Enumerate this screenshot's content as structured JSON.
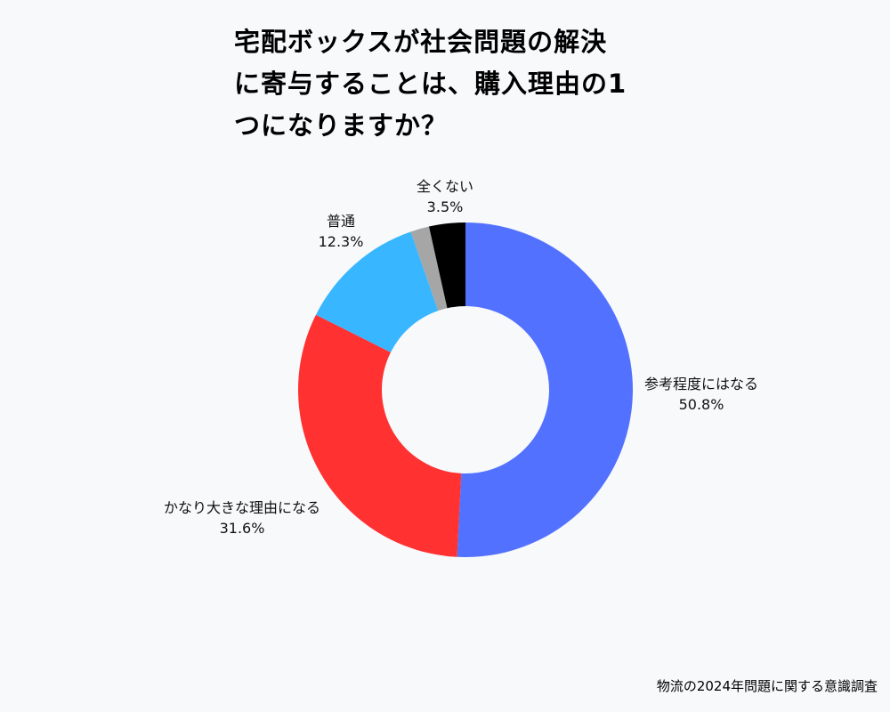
{
  "chart_data": {
    "type": "pie",
    "title_lines": [
      "宅配ボックスが社会問題の解決",
      "に寄与することは、購入理由の1",
      "つになりますか？"
    ],
    "slices": [
      {
        "label": "参考程度にはなる",
        "value": 50.8,
        "value_label": "50.8%",
        "color": "#5271ff"
      },
      {
        "label": "かなり大きな理由になる",
        "value": 31.6,
        "value_label": "31.6%",
        "color": "#ff3131"
      },
      {
        "label": "普通",
        "value": 12.3,
        "value_label": "12.3%",
        "color": "#38b6ff"
      },
      {
        "label": "",
        "value": 1.8,
        "value_label": "",
        "color": "#a6a6a6"
      },
      {
        "label": "全くない",
        "value": 3.5,
        "value_label": "3.5%",
        "color": "#000000"
      }
    ],
    "donut": true,
    "start": "top, clockwise"
  },
  "footer": {
    "source": "物流の2024年問題に関する意識調査"
  }
}
